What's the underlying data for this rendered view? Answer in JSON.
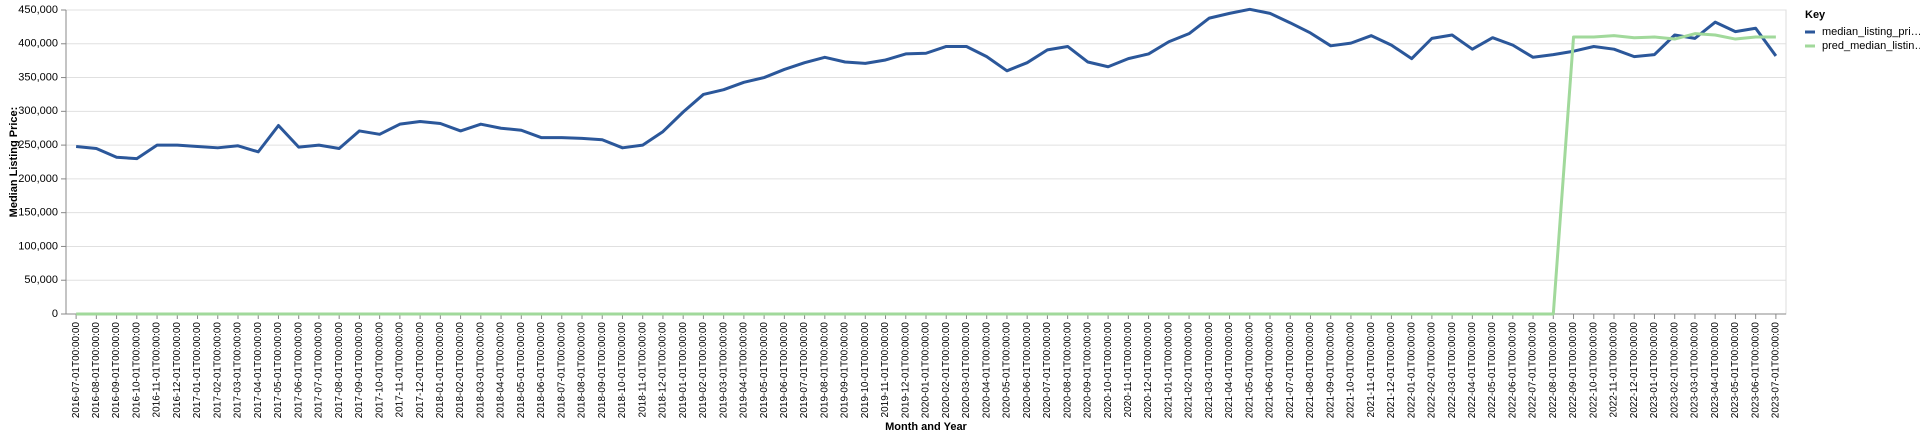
{
  "chart_data": {
    "type": "line",
    "x_label": "Month and Year",
    "y_label": "Median Listing Price:",
    "legend_title": "Key",
    "legend_position": "right",
    "grid": true,
    "categories": [
      "2016-07-01T00:00:00",
      "2016-08-01T00:00:00",
      "2016-09-01T00:00:00",
      "2016-10-01T00:00:00",
      "2016-11-01T00:00:00",
      "2016-12-01T00:00:00",
      "2017-01-01T00:00:00",
      "2017-02-01T00:00:00",
      "2017-03-01T00:00:00",
      "2017-04-01T00:00:00",
      "2017-05-01T00:00:00",
      "2017-06-01T00:00:00",
      "2017-07-01T00:00:00",
      "2017-08-01T00:00:00",
      "2017-09-01T00:00:00",
      "2017-10-01T00:00:00",
      "2017-11-01T00:00:00",
      "2017-12-01T00:00:00",
      "2018-01-01T00:00:00",
      "2018-02-01T00:00:00",
      "2018-03-01T00:00:00",
      "2018-04-01T00:00:00",
      "2018-05-01T00:00:00",
      "2018-06-01T00:00:00",
      "2018-07-01T00:00:00",
      "2018-08-01T00:00:00",
      "2018-09-01T00:00:00",
      "2018-10-01T00:00:00",
      "2018-11-01T00:00:00",
      "2018-12-01T00:00:00",
      "2019-01-01T00:00:00",
      "2019-02-01T00:00:00",
      "2019-03-01T00:00:00",
      "2019-04-01T00:00:00",
      "2019-05-01T00:00:00",
      "2019-06-01T00:00:00",
      "2019-07-01T00:00:00",
      "2019-08-01T00:00:00",
      "2019-09-01T00:00:00",
      "2019-10-01T00:00:00",
      "2019-11-01T00:00:00",
      "2019-12-01T00:00:00",
      "2020-01-01T00:00:00",
      "2020-02-01T00:00:00",
      "2020-03-01T00:00:00",
      "2020-04-01T00:00:00",
      "2020-05-01T00:00:00",
      "2020-06-01T00:00:00",
      "2020-07-01T00:00:00",
      "2020-08-01T00:00:00",
      "2020-09-01T00:00:00",
      "2020-10-01T00:00:00",
      "2020-11-01T00:00:00",
      "2020-12-01T00:00:00",
      "2021-01-01T00:00:00",
      "2021-02-01T00:00:00",
      "2021-03-01T00:00:00",
      "2021-04-01T00:00:00",
      "2021-05-01T00:00:00",
      "2021-06-01T00:00:00",
      "2021-07-01T00:00:00",
      "2021-08-01T00:00:00",
      "2021-09-01T00:00:00",
      "2021-10-01T00:00:00",
      "2021-11-01T00:00:00",
      "2021-12-01T00:00:00",
      "2022-01-01T00:00:00",
      "2022-02-01T00:00:00",
      "2022-03-01T00:00:00",
      "2022-04-01T00:00:00",
      "2022-05-01T00:00:00",
      "2022-06-01T00:00:00",
      "2022-07-01T00:00:00",
      "2022-08-01T00:00:00",
      "2022-09-01T00:00:00",
      "2022-10-01T00:00:00",
      "2022-11-01T00:00:00",
      "2022-12-01T00:00:00",
      "2023-01-01T00:00:00",
      "2023-02-01T00:00:00",
      "2023-03-01T00:00:00",
      "2023-04-01T00:00:00",
      "2023-05-01T00:00:00",
      "2023-06-01T00:00:00",
      "2023-07-01T00:00:00"
    ],
    "series": [
      {
        "name": "median_listing_pri…",
        "color": "#2b579a",
        "values": [
          248000,
          245000,
          232000,
          230000,
          250000,
          250000,
          248000,
          246000,
          249000,
          240000,
          279000,
          247000,
          250000,
          245000,
          271000,
          266000,
          281000,
          285000,
          282000,
          271000,
          281000,
          275000,
          272000,
          261000,
          261000,
          260000,
          258000,
          246000,
          250000,
          270000,
          299000,
          325000,
          332000,
          343000,
          350000,
          362000,
          372000,
          380000,
          373000,
          371000,
          376000,
          385000,
          386000,
          396000,
          396000,
          381000,
          360000,
          372000,
          391000,
          396000,
          373000,
          366000,
          378000,
          385000,
          403000,
          415000,
          438000,
          445000,
          451000,
          445000,
          431000,
          416000,
          397000,
          401000,
          412000,
          398000,
          378000,
          408000,
          413000,
          392000,
          409000,
          398000,
          380000,
          384000,
          389000,
          396000,
          392000,
          381000,
          384000,
          413000,
          408000,
          432000,
          418000,
          423000,
          382000
        ]
      },
      {
        "name": "pred_median_listin…",
        "color": "#a1d99b",
        "values": [
          0,
          0,
          0,
          0,
          0,
          0,
          0,
          0,
          0,
          0,
          0,
          0,
          0,
          0,
          0,
          0,
          0,
          0,
          0,
          0,
          0,
          0,
          0,
          0,
          0,
          0,
          0,
          0,
          0,
          0,
          0,
          0,
          0,
          0,
          0,
          0,
          0,
          0,
          0,
          0,
          0,
          0,
          0,
          0,
          0,
          0,
          0,
          0,
          0,
          0,
          0,
          0,
          0,
          0,
          0,
          0,
          0,
          0,
          0,
          0,
          0,
          0,
          0,
          0,
          0,
          0,
          0,
          0,
          0,
          0,
          0,
          0,
          0,
          0,
          410000,
          410000,
          412000,
          409000,
          410000,
          407000,
          415000,
          413000,
          407000,
          410000,
          410000
        ]
      }
    ],
    "ylim": [
      0,
      450000
    ],
    "yticks": [
      0,
      {
        "value": 50000,
        "label": "50,000"
      },
      {
        "value": 100000,
        "label": "100,000"
      },
      {
        "value": 150000,
        "label": "150,000"
      },
      {
        "value": 200000,
        "label": "200,000"
      },
      {
        "value": 250000,
        "label": "250,000"
      },
      {
        "value": 300000,
        "label": "300,000"
      },
      {
        "value": 350000,
        "label": "350,000"
      },
      {
        "value": 400000,
        "label": "400,000"
      },
      {
        "value": 450000,
        "label": "450,000"
      }
    ]
  }
}
